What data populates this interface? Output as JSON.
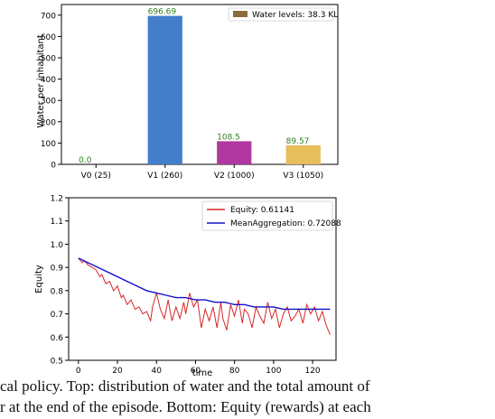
{
  "chart_data": [
    {
      "type": "bar",
      "ylabel": "Water per inhabitant",
      "ylim": [
        0,
        750
      ],
      "yticks": [
        0,
        100,
        200,
        300,
        400,
        500,
        600,
        700
      ],
      "categories": [
        "V0 (25)",
        "V1 (260)",
        "V2 (1000)",
        "V3 (1050)"
      ],
      "values": [
        0.0,
        696.69,
        108.5,
        89.57
      ],
      "value_labels": [
        "0.0",
        "696.69",
        "108.5",
        "89.57"
      ],
      "bar_colors": [
        "#3a7cc8",
        "#427ec9",
        "#b0379f",
        "#e6be5c"
      ],
      "value_label_color": "#2e7d1f",
      "legend": {
        "label": "Water levels: 38.3 KL",
        "color": "#8b6b3d",
        "position": "top-right"
      },
      "grid": false
    },
    {
      "type": "line",
      "xlabel": "time",
      "ylabel": "Equity",
      "xlim": [
        -5,
        132
      ],
      "ylim": [
        0.5,
        1.2
      ],
      "xticks": [
        0,
        20,
        40,
        60,
        80,
        100,
        120
      ],
      "yticks": [
        0.5,
        0.6,
        0.7,
        0.8,
        0.9,
        1.0,
        1.1,
        1.2
      ],
      "legend": {
        "position": "top-right"
      },
      "grid": false,
      "series": [
        {
          "name": "Equity: 0.61141",
          "color": "#d62728",
          "x": [
            0,
            2,
            3,
            5,
            7,
            9,
            11,
            12,
            14,
            16,
            18,
            20,
            22,
            23,
            25,
            27,
            29,
            31,
            33,
            35,
            37,
            38,
            40,
            42,
            44,
            46,
            47,
            48,
            50,
            52,
            54,
            55,
            57,
            59,
            61,
            63,
            65,
            67,
            69,
            71,
            73,
            74,
            76,
            78,
            80,
            82,
            84,
            85,
            87,
            89,
            91,
            93,
            95,
            97,
            99,
            101,
            103,
            105,
            107,
            109,
            111,
            113,
            115,
            117,
            119,
            121,
            123,
            125,
            127,
            129
          ],
          "y": [
            0.94,
            0.92,
            0.93,
            0.91,
            0.9,
            0.89,
            0.86,
            0.87,
            0.83,
            0.84,
            0.8,
            0.82,
            0.77,
            0.78,
            0.74,
            0.76,
            0.72,
            0.73,
            0.7,
            0.71,
            0.67,
            0.73,
            0.79,
            0.72,
            0.68,
            0.76,
            0.71,
            0.67,
            0.73,
            0.68,
            0.75,
            0.7,
            0.79,
            0.73,
            0.76,
            0.64,
            0.72,
            0.67,
            0.73,
            0.64,
            0.75,
            0.68,
            0.63,
            0.74,
            0.69,
            0.76,
            0.66,
            0.72,
            0.7,
            0.64,
            0.73,
            0.69,
            0.66,
            0.75,
            0.68,
            0.72,
            0.64,
            0.7,
            0.73,
            0.67,
            0.69,
            0.72,
            0.66,
            0.74,
            0.7,
            0.73,
            0.67,
            0.71,
            0.65,
            0.61
          ]
        },
        {
          "name": "MeanAggregation: 0.72088",
          "color": "#1010c8",
          "x": [
            0,
            5,
            10,
            15,
            20,
            25,
            30,
            35,
            40,
            45,
            50,
            55,
            60,
            65,
            70,
            75,
            80,
            85,
            90,
            95,
            100,
            105,
            110,
            115,
            120,
            125,
            129
          ],
          "y": [
            0.94,
            0.92,
            0.9,
            0.88,
            0.86,
            0.84,
            0.82,
            0.8,
            0.79,
            0.78,
            0.77,
            0.77,
            0.76,
            0.76,
            0.75,
            0.75,
            0.74,
            0.74,
            0.73,
            0.73,
            0.73,
            0.72,
            0.72,
            0.72,
            0.72,
            0.72,
            0.72
          ]
        }
      ]
    }
  ],
  "caption": {
    "line1": "cal policy. Top: distribution of water and the total amount of",
    "line2": "r at the end of the episode. Bottom: Equity (rewards) at each"
  }
}
